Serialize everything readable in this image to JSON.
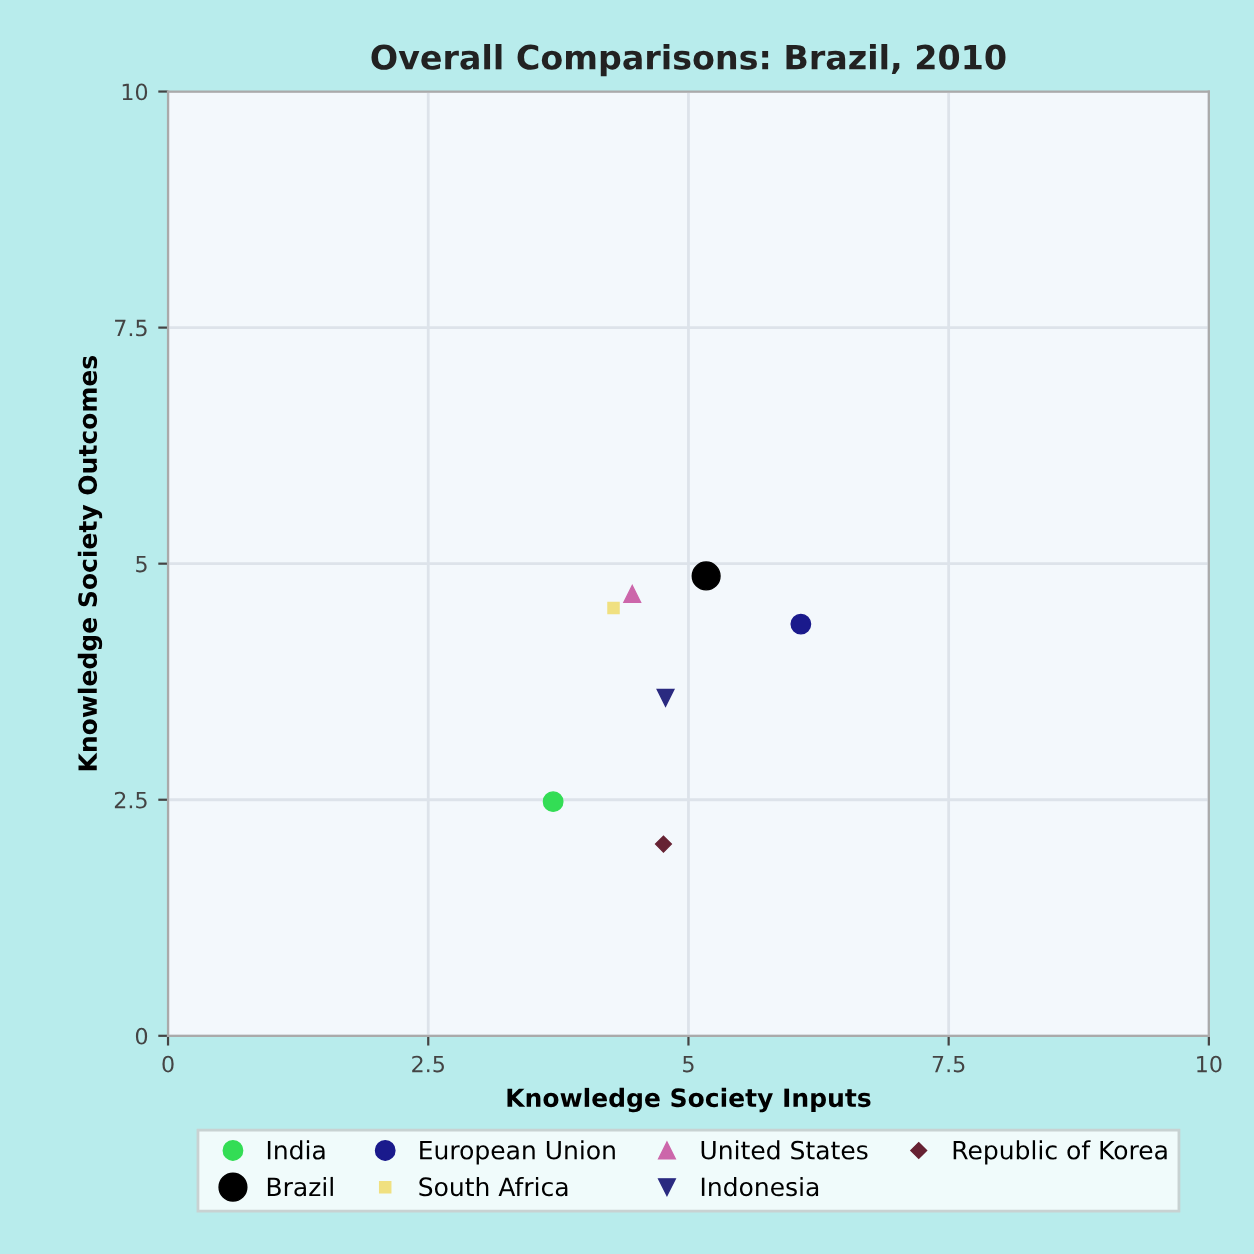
{
  "chart_data": {
    "type": "scatter",
    "title": "Overall Comparisons: Brazil, 2010",
    "xlabel": "Knowledge Society Inputs",
    "ylabel": "Knowledge Society Outcomes",
    "xlim": [
      0,
      10
    ],
    "ylim": [
      0,
      10
    ],
    "xticks": [
      0,
      2.5,
      5,
      7.5,
      10
    ],
    "yticks": [
      0,
      2.5,
      5,
      7.5,
      10
    ],
    "grid": true,
    "legend": "bottom",
    "series": [
      {
        "name": "India",
        "color": "#33dd55",
        "marker": "circle",
        "x": [
          3.7
        ],
        "values": [
          2.48
        ]
      },
      {
        "name": "European Union",
        "color": "#1a1a8c",
        "marker": "circle",
        "x": [
          6.08
        ],
        "values": [
          4.36
        ]
      },
      {
        "name": "United States",
        "color": "#cc66aa",
        "marker": "triangle",
        "x": [
          4.46
        ],
        "values": [
          4.68
        ]
      },
      {
        "name": "Republic of Korea",
        "color": "#662233",
        "marker": "diamond",
        "x": [
          4.76
        ],
        "values": [
          2.03
        ]
      },
      {
        "name": "Brazil",
        "color": "#000000",
        "marker": "circle",
        "x": [
          5.17
        ],
        "values": [
          4.87
        ]
      },
      {
        "name": "South Africa",
        "color": "#f0e080",
        "marker": "square",
        "x": [
          4.28
        ],
        "values": [
          4.53
        ]
      },
      {
        "name": "Indonesia",
        "color": "#2a2a80",
        "marker": "triangle-down",
        "x": [
          4.78
        ],
        "values": [
          3.58
        ]
      }
    ]
  }
}
